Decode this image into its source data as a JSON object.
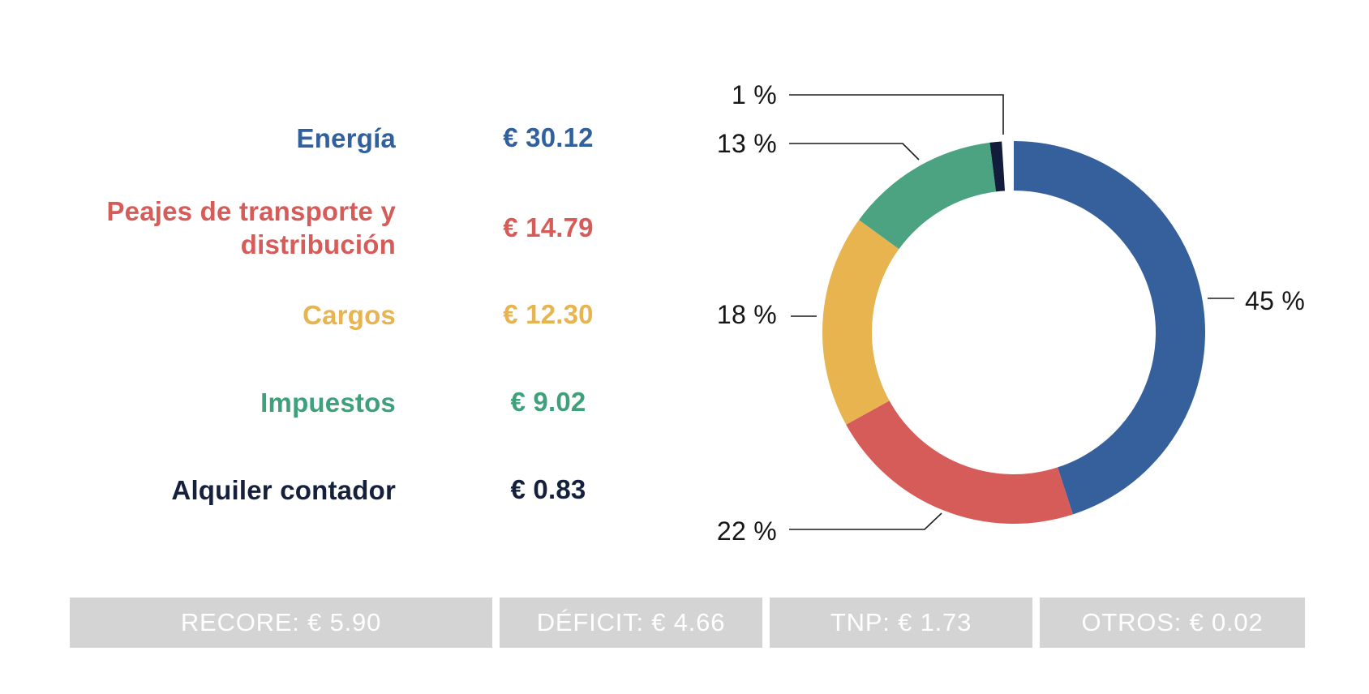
{
  "legend": {
    "items": [
      {
        "label": "Energía",
        "value": "€ 30.12",
        "color": "#31609E"
      },
      {
        "label": "Peajes de transporte y distribución",
        "value": "€ 14.79",
        "color": "#D55C58"
      },
      {
        "label": "Cargos",
        "value": "€ 12.30",
        "color": "#E7B450"
      },
      {
        "label": "Impuestos",
        "value": "€ 9.02",
        "color": "#3FA07C"
      },
      {
        "label": "Alquiler contador",
        "value": "€ 0.83",
        "color": "#15203D"
      }
    ]
  },
  "chart_data": {
    "type": "pie",
    "subtype": "donut",
    "title": "",
    "categories": [
      "Energía",
      "Peajes de transporte y distribución",
      "Cargos",
      "Impuestos",
      "Alquiler contador"
    ],
    "values_eur": [
      30.12,
      14.79,
      12.3,
      9.02,
      0.83
    ],
    "percentages": [
      45,
      22,
      18,
      13,
      1
    ],
    "percent_labels": [
      "45 %",
      "22 %",
      "18 %",
      "13 %",
      "1 %"
    ],
    "slice_colors": [
      "#35609B",
      "#D55C58",
      "#E7B450",
      "#4BA381",
      "#111D3B"
    ],
    "start_angle_clockwise_from_top_deg": 0,
    "direction": "clockwise",
    "legend_position": "left",
    "leader_line_color": "#1C1C1C"
  },
  "footer": {
    "bg_color": "#D4D4D4",
    "text_color": "#FFFFFF",
    "items": [
      {
        "name": "RECORE",
        "value": "€ 5.90",
        "label": "RECORE: € 5.90"
      },
      {
        "name": "DÉFICIT",
        "value": "€ 4.66",
        "label": "DÉFICIT: € 4.66"
      },
      {
        "name": "TNP",
        "value": "€ 1.73",
        "label": "TNP: € 1.73"
      },
      {
        "name": "OTROS",
        "value": "€ 0.02",
        "label": "OTROS: € 0.02"
      }
    ]
  }
}
